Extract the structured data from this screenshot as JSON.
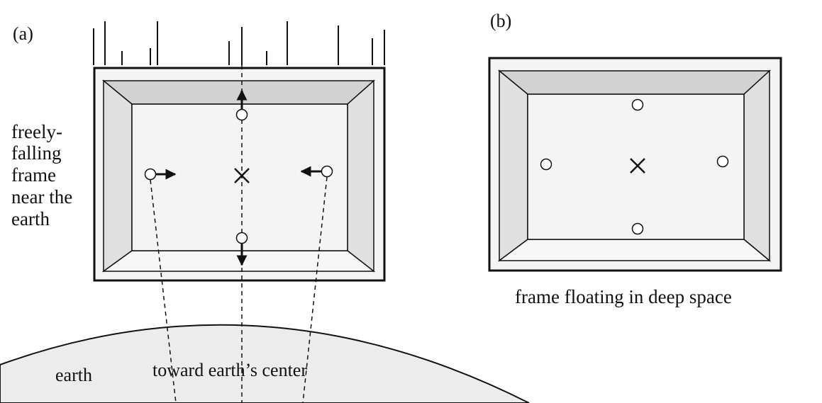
{
  "panel_a": {
    "label": "(a)",
    "side_label_lines": [
      "freely-",
      "falling",
      "frame",
      "near the",
      "earth"
    ],
    "earth_label": "earth",
    "center_label": "toward earth’s center",
    "center_marker": "×"
  },
  "panel_b": {
    "label": "(b)",
    "caption": "frame floating in deep space",
    "center_marker": "×"
  },
  "colors": {
    "ink": "#111111",
    "frame_inner_fill": "#f4f4f4",
    "top_bevel": "#d2d2d3",
    "side_bevel": "#e0e0e1",
    "bottom_bevel": "#f7f7f7",
    "earth_fill": "#ececec"
  },
  "icons": [
    "up-arrow-icon",
    "down-arrow-icon",
    "right-arrow-icon",
    "left-arrow-icon",
    "cross-marker-icon",
    "ball-icon"
  ]
}
